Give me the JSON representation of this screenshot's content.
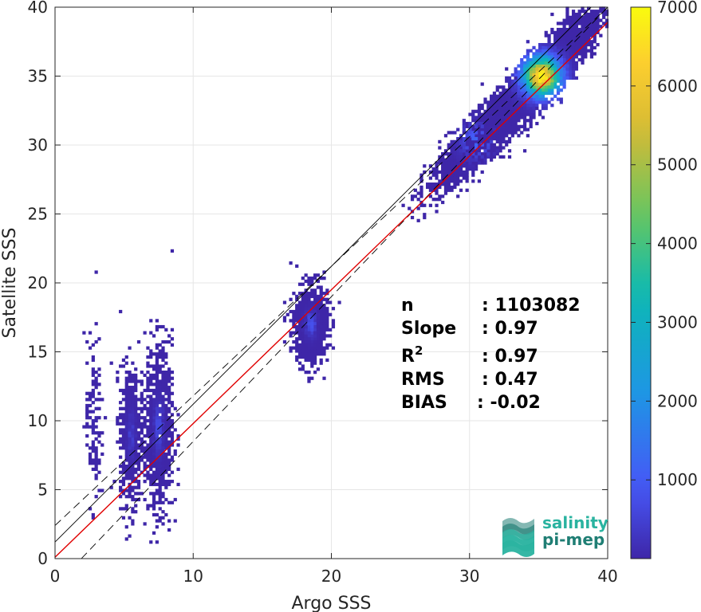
{
  "chart_data": {
    "type": "heatmap",
    "title": "",
    "xlabel": "Argo SSS",
    "ylabel": "Satellite SSS",
    "xlim": [
      0,
      40
    ],
    "ylim": [
      0,
      40
    ],
    "xticks": [
      "0",
      "10",
      "20",
      "30",
      "40"
    ],
    "yticks": [
      "0",
      "5",
      "10",
      "15",
      "20",
      "25",
      "30",
      "35",
      "40"
    ],
    "grid": true,
    "colorbar": {
      "range": [
        1,
        7000
      ],
      "ticks": [
        "1000",
        "2000",
        "3000",
        "4000",
        "5000",
        "6000",
        "7000"
      ],
      "colormap": "parula"
    },
    "clusters": [
      {
        "x_center": 35.2,
        "y_center": 35.0,
        "x_spread": 2.2,
        "y_spread": 2.3,
        "peak_count": 7000
      },
      {
        "x_center": 30.5,
        "y_center": 30.3,
        "x_spread": 1.8,
        "y_spread": 2.0,
        "peak_count": 1200
      },
      {
        "x_center": 18.5,
        "y_center": 17.0,
        "x_spread": 0.6,
        "y_spread": 1.4,
        "peak_count": 900
      },
      {
        "x_center": 7.5,
        "y_center": 9.5,
        "x_spread": 0.5,
        "y_spread": 3.0,
        "peak_count": 700
      },
      {
        "x_center": 5.5,
        "y_center": 9.0,
        "x_spread": 0.4,
        "y_spread": 2.5,
        "peak_count": 500
      },
      {
        "x_center": 2.8,
        "y_center": 10.0,
        "x_spread": 0.3,
        "y_spread": 3.0,
        "peak_count": 100
      }
    ],
    "reference_lines": [
      {
        "name": "identity",
        "style": "solid",
        "color": "#000000",
        "slope": 1,
        "intercept": 1.2
      },
      {
        "name": "upper_bound",
        "style": "dashed",
        "color": "#000000",
        "slope": 0.94,
        "intercept": 2.4
      },
      {
        "name": "lower_bound",
        "style": "dashed",
        "color": "#000000",
        "slope": 1.05,
        "intercept": -2.0
      },
      {
        "name": "fit",
        "style": "solid",
        "color": "#e00000",
        "slope": 0.97,
        "intercept": 0.1
      }
    ],
    "stats": [
      {
        "label": "n",
        "sup": "",
        "value": ": 1103082"
      },
      {
        "label": "Slope",
        "sup": "",
        "value": ": 0.97"
      },
      {
        "label": "R",
        "sup": "2",
        "value": ": 0.97"
      },
      {
        "label": "RMS",
        "sup": "",
        "value": ": 0.47"
      },
      {
        "label": "BIAS",
        "sup": "",
        "value": ": -0.02"
      }
    ]
  },
  "logo": {
    "line1": "salinity",
    "line2": "pi-mep",
    "color_top": "#2ab3a0",
    "color_bottom": "#1f7e74"
  }
}
